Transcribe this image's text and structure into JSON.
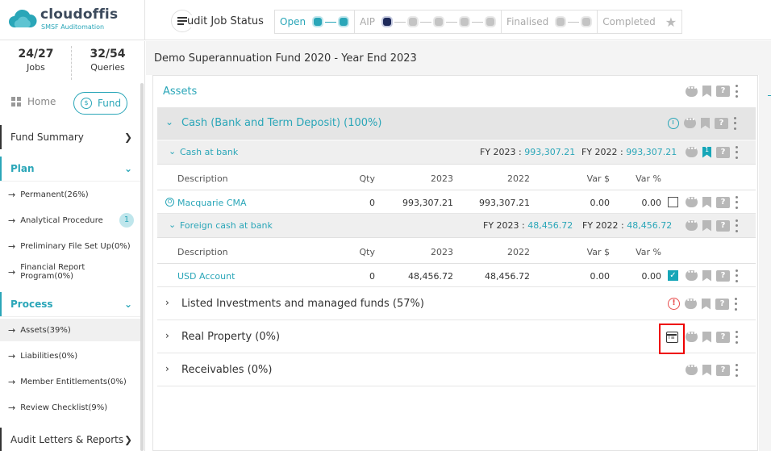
{
  "logo": {
    "name": "cloudoffis",
    "tagline": "SMSF Auditomation"
  },
  "status": {
    "title": "udit Job Status"
  },
  "stages": [
    {
      "label": "Open",
      "state": "active"
    },
    {
      "label": "AIP",
      "state": "pending"
    },
    {
      "label": "Finalised",
      "state": "pending"
    },
    {
      "label": "Completed",
      "state": "pending"
    }
  ],
  "colors": {
    "accent": "#2aa6b8",
    "alert": "#e84c4c",
    "highlight": "#ee0000"
  },
  "sidebar": {
    "jobs": {
      "count": "24/27",
      "label": "Jobs"
    },
    "queries": {
      "count": "32/54",
      "label": "Queries"
    },
    "tabs": {
      "home": "Home",
      "fund": "Fund"
    },
    "fund_summary": "Fund Summary",
    "plan": {
      "label": "Plan",
      "items": [
        {
          "label": "Permanent(26%)"
        },
        {
          "label": "Analytical Procedure",
          "badge": "1"
        },
        {
          "label": "Preliminary File Set Up(0%)"
        },
        {
          "label": "Financial Report Program(0%)"
        }
      ]
    },
    "process": {
      "label": "Process",
      "items": [
        {
          "label": "Assets(39%)",
          "active": true
        },
        {
          "label": "Liabilities(0%)"
        },
        {
          "label": "Member Entitlements(0%)"
        },
        {
          "label": "Review Checklist(9%)"
        }
      ]
    },
    "audit_letters": "Audit Letters & Reports"
  },
  "main": {
    "fund_title": "Demo Superannuation Fund 2020 - Year End 2023",
    "section": "Assets",
    "categories": [
      {
        "title": "Cash (Bank and Term Deposit) (100%)",
        "expanded": true
      },
      {
        "title": "Listed Investments and managed funds (57%)",
        "expanded": false
      },
      {
        "title": "Real Property (0%)",
        "expanded": false
      },
      {
        "title": "Receivables (0%)",
        "expanded": false
      }
    ],
    "columns": {
      "description": "Description",
      "qty": "Qty",
      "y2023": "2023",
      "y2022": "2022",
      "var_dollar": "Var $",
      "var_pct": "Var %"
    },
    "fy_labels": {
      "fy2023": "FY 2023 :",
      "fy2022": "FY 2022 :"
    },
    "subgroups": [
      {
        "title": "Cash at bank",
        "fy2023": "993,307.21",
        "fy2022": "993,307.21",
        "bookmark_count": "1",
        "rows": [
          {
            "name": "Macquarie CMA",
            "qty": "0",
            "v2023": "993,307.21",
            "v2022": "993,307.21",
            "var_dollar": "0.00",
            "var_pct": "0.00",
            "checked": false
          }
        ]
      },
      {
        "title": "Foreign cash at bank",
        "fy2023": "48,456.72",
        "fy2022": "48,456.72",
        "rows": [
          {
            "name": "USD Account",
            "qty": "0",
            "v2023": "48,456.72",
            "v2022": "48,456.72",
            "var_dollar": "0.00",
            "var_pct": "0.00",
            "checked": true
          }
        ]
      }
    ],
    "row_icon": "O"
  },
  "icons": {
    "chat": "chat-icon",
    "bookmark": "bookmark-icon",
    "query": "query-icon",
    "more": "more-icon",
    "clock": "clock-icon",
    "alert": "alert-icon",
    "calendar": "calendar-text-icon",
    "star": "star-icon"
  }
}
